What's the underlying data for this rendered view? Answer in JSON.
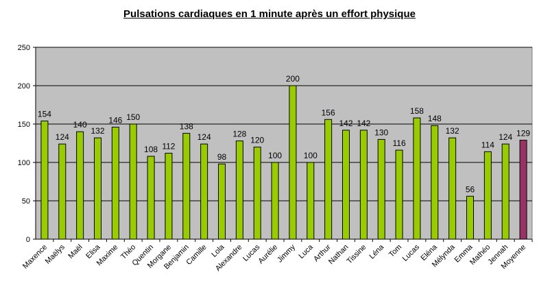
{
  "chart_data": {
    "type": "bar",
    "title": "Pulsations cardiaques en 1 minute après un effort physique",
    "xlabel": "",
    "ylabel": "",
    "ylim": [
      0,
      250
    ],
    "yticks": [
      0,
      50,
      100,
      150,
      200,
      250
    ],
    "grid": true,
    "legend": "none",
    "categories": [
      "Maxence",
      "Maëlys",
      "Maël",
      "Elisa",
      "Maxime",
      "Théo",
      "Quentin",
      "Morgane",
      "Benjamin",
      "Camille",
      "Lola",
      "Alexandre",
      "Lucas",
      "Aurélie",
      "Jimmy",
      "Luca",
      "Arthur",
      "Nathan",
      "Tissine",
      "Léna",
      "Tom",
      "Lucas",
      "Eléna",
      "Mélynda",
      "Emma",
      "Mathéo",
      "Jennah",
      "Moyenne"
    ],
    "values": [
      154,
      124,
      140,
      132,
      146,
      150,
      108,
      112,
      138,
      124,
      98,
      128,
      120,
      100,
      200,
      100,
      156,
      142,
      142,
      130,
      116,
      158,
      148,
      132,
      56,
      114,
      124,
      129
    ],
    "colors": {
      "bar": "#99cc00",
      "average_bar": "#993366",
      "plot_background": "#c0c0c0",
      "gridline": "#000000"
    }
  }
}
